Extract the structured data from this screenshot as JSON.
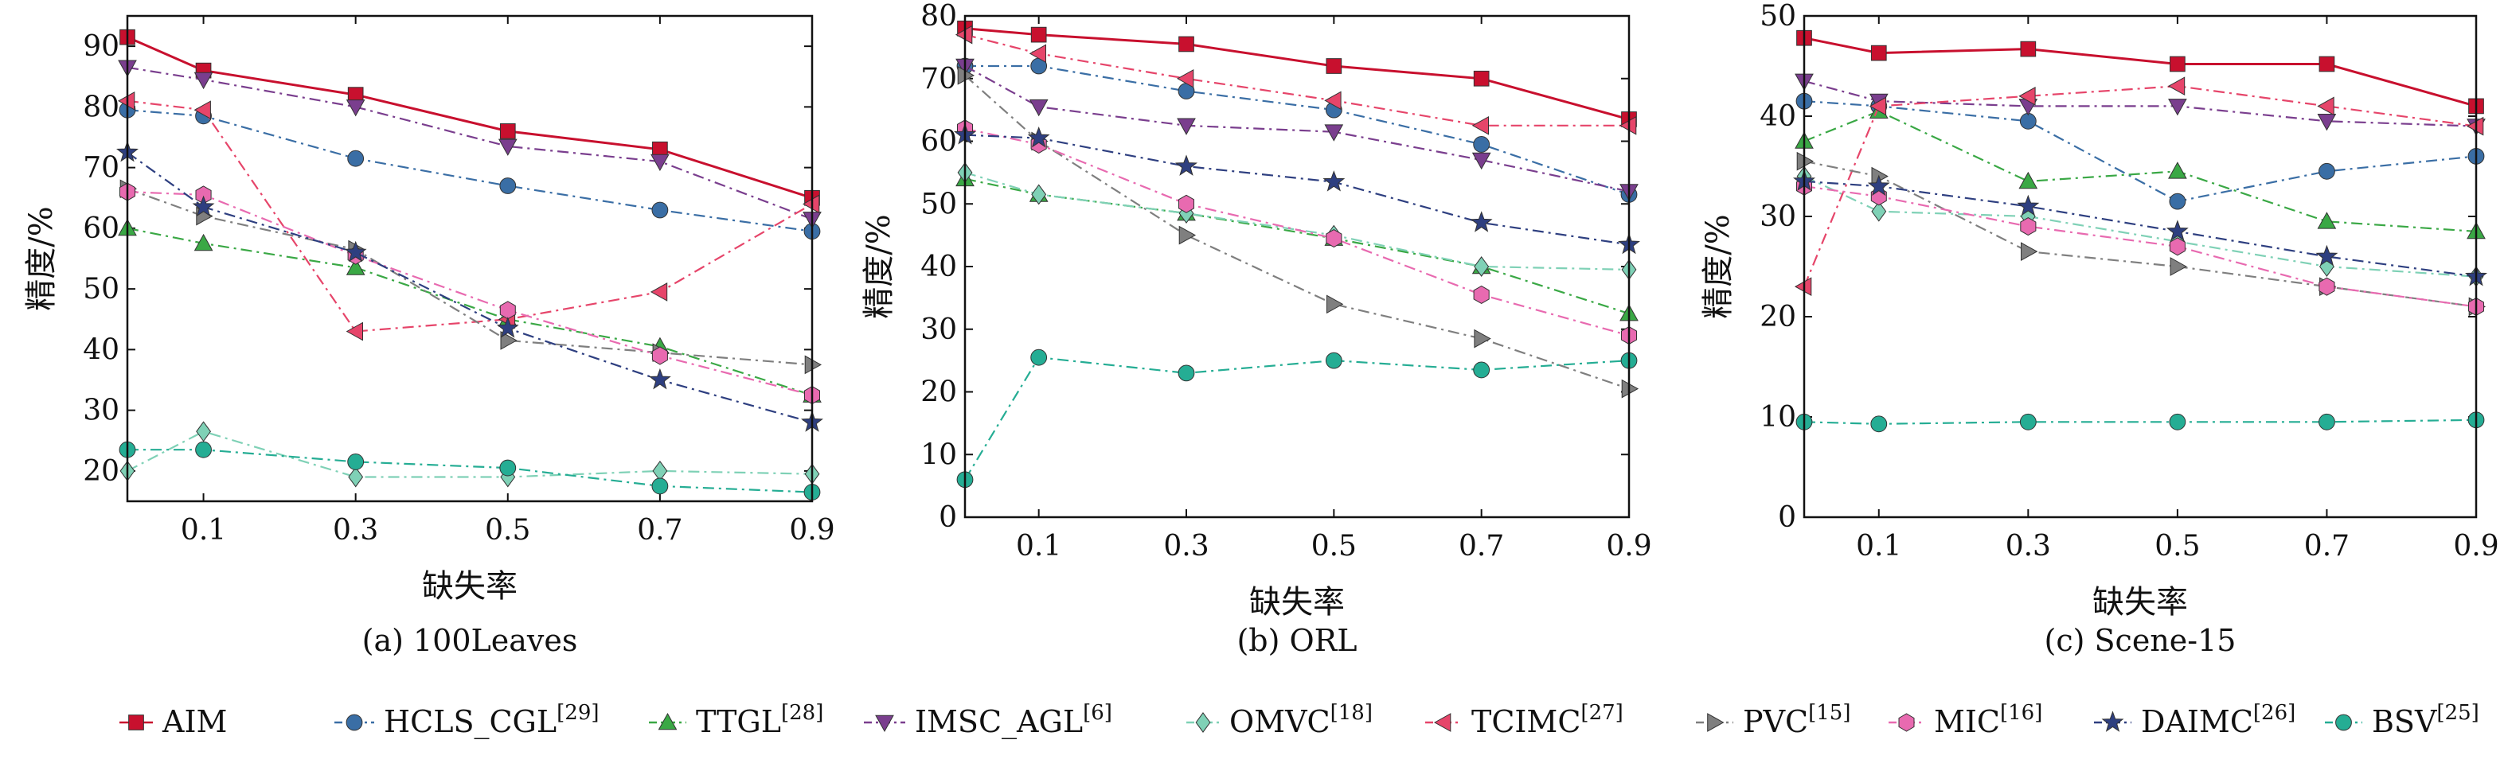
{
  "legend": {
    "entries": [
      {
        "label": "AIM",
        "sup": ""
      },
      {
        "label": "HCLS_CGL",
        "sup": "[29]"
      },
      {
        "label": "TTGL",
        "sup": "[28]"
      },
      {
        "label": "IMSC_AGL",
        "sup": "[6]"
      },
      {
        "label": "OMVC",
        "sup": "[18]"
      },
      {
        "label": "TCIMC",
        "sup": "[27]"
      },
      {
        "label": "PVC",
        "sup": "[15]"
      },
      {
        "label": "MIC",
        "sup": "[16]"
      },
      {
        "label": "DAIMC",
        "sup": "[26]"
      },
      {
        "label": "BSV",
        "sup": "[25]"
      }
    ]
  },
  "chart_data": [
    {
      "type": "line",
      "title": "(a) 100Leaves",
      "xlabel": "缺失率",
      "ylabel": "精度/%",
      "x": [
        0,
        0.1,
        0.3,
        0.5,
        0.7,
        0.9
      ],
      "xticks": [
        "0.1",
        "0.3",
        "0.5",
        "0.7",
        "0.9"
      ],
      "xtick_values": [
        0.1,
        0.3,
        0.5,
        0.7,
        0.9
      ],
      "xlim": [
        0,
        0.9
      ],
      "ylim": [
        15,
        95
      ],
      "yticks": [
        20,
        30,
        40,
        50,
        60,
        70,
        80,
        90
      ],
      "series": [
        {
          "name": "AIM",
          "color": "#c8102e",
          "marker": "square",
          "dash": "solid",
          "values": [
            91.5,
            86,
            82,
            76,
            73,
            65
          ]
        },
        {
          "name": "HCLS_CGL",
          "color": "#3a6ea5",
          "marker": "circle",
          "dash": "dashdot",
          "values": [
            79.5,
            78.5,
            71.5,
            67,
            63,
            59.5
          ]
        },
        {
          "name": "TTGL",
          "color": "#3aa845",
          "marker": "triangle-up",
          "dash": "dashdot",
          "values": [
            60,
            57.5,
            53.5,
            45,
            40.5,
            32.5
          ]
        },
        {
          "name": "IMSC_AGL",
          "color": "#7a3e8e",
          "marker": "triangle-down",
          "dash": "dashdot",
          "values": [
            86.5,
            84.5,
            80,
            73.5,
            71,
            61.5
          ]
        },
        {
          "name": "OMVC",
          "color": "#7fd1b6",
          "marker": "diamond",
          "dash": "dashdot",
          "values": [
            20,
            26.5,
            19,
            19,
            20,
            19.5
          ]
        },
        {
          "name": "TCIMC",
          "color": "#e6456a",
          "marker": "triangle-left",
          "dash": "dashdot",
          "values": [
            81,
            79.5,
            43,
            45,
            49.5,
            64
          ]
        },
        {
          "name": "PVC",
          "color": "#7f7f7f",
          "marker": "triangle-right",
          "dash": "dashdot",
          "values": [
            66.5,
            62,
            56.5,
            41.5,
            39.5,
            37.5
          ]
        },
        {
          "name": "MIC",
          "color": "#e86ab0",
          "marker": "hexagon",
          "dash": "dashdot",
          "values": [
            66,
            65.5,
            55.5,
            46.5,
            39,
            32.5
          ]
        },
        {
          "name": "DAIMC",
          "color": "#2e3f80",
          "marker": "star",
          "dash": "dashdot",
          "values": [
            72.5,
            63.5,
            56,
            43.5,
            35,
            28
          ]
        },
        {
          "name": "BSV",
          "color": "#25ad94",
          "marker": "circle",
          "dash": "dashdot",
          "values": [
            23.5,
            23.5,
            21.5,
            20.5,
            17.5,
            16.5
          ]
        }
      ]
    },
    {
      "type": "line",
      "title": "(b) ORL",
      "xlabel": "缺失率",
      "ylabel": "精度/%",
      "x": [
        0,
        0.1,
        0.3,
        0.5,
        0.7,
        0.9
      ],
      "xticks": [
        "0.1",
        "0.3",
        "0.5",
        "0.7",
        "0.9"
      ],
      "xtick_values": [
        0.1,
        0.3,
        0.5,
        0.7,
        0.9
      ],
      "xlim": [
        0,
        0.9
      ],
      "ylim": [
        0,
        80
      ],
      "yticks": [
        0,
        10,
        20,
        30,
        40,
        50,
        60,
        70,
        80
      ],
      "series": [
        {
          "name": "AIM",
          "color": "#c8102e",
          "marker": "square",
          "dash": "solid",
          "values": [
            78,
            77,
            75.5,
            72,
            70,
            63.5
          ]
        },
        {
          "name": "HCLS_CGL",
          "color": "#3a6ea5",
          "marker": "circle",
          "dash": "dashdot",
          "values": [
            72,
            72,
            68,
            65,
            59.5,
            51.5
          ]
        },
        {
          "name": "TTGL",
          "color": "#3aa845",
          "marker": "triangle-up",
          "dash": "dashdot",
          "values": [
            54,
            51.5,
            48.5,
            44.5,
            40,
            32.5
          ]
        },
        {
          "name": "IMSC_AGL",
          "color": "#7a3e8e",
          "marker": "triangle-down",
          "dash": "dashdot",
          "values": [
            72,
            65.5,
            62.5,
            61.5,
            57,
            52
          ]
        },
        {
          "name": "OMVC",
          "color": "#7fd1b6",
          "marker": "diamond",
          "dash": "dashdot",
          "values": [
            55,
            51.5,
            48.5,
            45,
            40,
            39.5
          ]
        },
        {
          "name": "TCIMC",
          "color": "#e6456a",
          "marker": "triangle-left",
          "dash": "dashdot",
          "values": [
            77,
            74,
            70,
            66.5,
            62.5,
            62.5
          ]
        },
        {
          "name": "PVC",
          "color": "#7f7f7f",
          "marker": "triangle-right",
          "dash": "dashdot",
          "values": [
            70.5,
            60,
            45,
            34,
            28.5,
            20.5
          ]
        },
        {
          "name": "MIC",
          "color": "#e86ab0",
          "marker": "hexagon",
          "dash": "dashdot",
          "values": [
            62,
            59.5,
            50,
            44.5,
            35.5,
            29
          ]
        },
        {
          "name": "DAIMC",
          "color": "#2e3f80",
          "marker": "star",
          "dash": "dashdot",
          "values": [
            61,
            60.5,
            56,
            53.5,
            47,
            43.5
          ]
        },
        {
          "name": "BSV",
          "color": "#25ad94",
          "marker": "circle",
          "dash": "dashdot",
          "values": [
            6,
            25.5,
            23,
            25,
            23.5,
            25
          ]
        }
      ]
    },
    {
      "type": "line",
      "title": "(c) Scene-15",
      "xlabel": "缺失率",
      "ylabel": "精度/%",
      "x": [
        0,
        0.1,
        0.3,
        0.5,
        0.7,
        0.9
      ],
      "xticks": [
        "0.1",
        "0.3",
        "0.5",
        "0.7",
        "0.9"
      ],
      "xtick_values": [
        0.1,
        0.3,
        0.5,
        0.7,
        0.9
      ],
      "xlim": [
        0,
        0.9
      ],
      "ylim": [
        0,
        50
      ],
      "yticks": [
        0,
        10,
        20,
        30,
        40,
        50
      ],
      "series": [
        {
          "name": "AIM",
          "color": "#c8102e",
          "marker": "square",
          "dash": "solid",
          "values": [
            47.8,
            46.3,
            46.7,
            45.2,
            45.2,
            41
          ]
        },
        {
          "name": "HCLS_CGL",
          "color": "#3a6ea5",
          "marker": "circle",
          "dash": "dashdot",
          "values": [
            41.5,
            41,
            39.5,
            31.5,
            34.5,
            36
          ]
        },
        {
          "name": "TTGL",
          "color": "#3aa845",
          "marker": "triangle-up",
          "dash": "dashdot",
          "values": [
            37.5,
            40.5,
            33.5,
            34.5,
            29.5,
            28.5
          ]
        },
        {
          "name": "IMSC_AGL",
          "color": "#7a3e8e",
          "marker": "triangle-down",
          "dash": "dashdot",
          "values": [
            43.5,
            41.5,
            41,
            41,
            39.5,
            39
          ]
        },
        {
          "name": "OMVC",
          "color": "#7fd1b6",
          "marker": "diamond",
          "dash": "dashdot",
          "values": [
            34,
            30.5,
            30,
            27.5,
            25,
            24
          ]
        },
        {
          "name": "TCIMC",
          "color": "#e6456a",
          "marker": "triangle-left",
          "dash": "dashdot",
          "values": [
            23,
            41,
            42,
            43,
            41,
            39
          ]
        },
        {
          "name": "PVC",
          "color": "#7f7f7f",
          "marker": "triangle-right",
          "dash": "dashdot",
          "values": [
            35.5,
            34,
            26.5,
            25,
            23,
            21
          ]
        },
        {
          "name": "MIC",
          "color": "#e86ab0",
          "marker": "hexagon",
          "dash": "dashdot",
          "values": [
            33,
            32,
            29,
            27,
            23,
            21
          ]
        },
        {
          "name": "DAIMC",
          "color": "#2e3f80",
          "marker": "star",
          "dash": "dashdot",
          "values": [
            33.5,
            33,
            31,
            28.5,
            26,
            24
          ]
        },
        {
          "name": "BSV",
          "color": "#25ad94",
          "marker": "circle",
          "dash": "dashdot",
          "values": [
            9.5,
            9.3,
            9.5,
            9.5,
            9.5,
            9.7
          ]
        }
      ]
    }
  ]
}
